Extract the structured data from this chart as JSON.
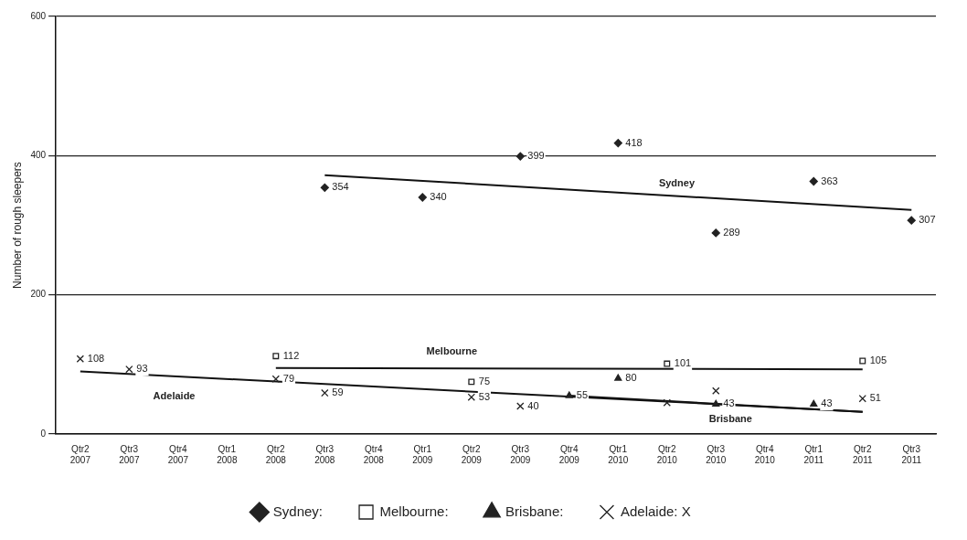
{
  "chart_data": {
    "type": "scatter",
    "ylabel": "Number of rough sleepers",
    "categories": [
      "Qtr2 2007",
      "Qtr3 2007",
      "Qtr4 2007",
      "Qtr1 2008",
      "Qtr2 2008",
      "Qtr3 2008",
      "Qtr4 2008",
      "Qtr1 2009",
      "Qtr2 2009",
      "Qtr3 2009",
      "Qtr4 2009",
      "Qtr1 2010",
      "Qtr2 2010",
      "Qtr3 2010",
      "Qtr4 2010",
      "Qtr1 2011",
      "Qtr2 2011",
      "Qtr3 2011"
    ],
    "series": [
      {
        "name": "Sydney:",
        "marker": "diamond",
        "color": "#222222",
        "x": [
          "Qtr3 2008",
          "Qtr1 2009",
          "Qtr3 2009",
          "Qtr1 2010",
          "Qtr3 2010",
          "Qtr1 2011",
          "Qtr3 2011"
        ],
        "values": [
          354,
          340,
          399,
          418,
          289,
          363,
          307
        ],
        "value_labels": [
          "354",
          "340",
          "399",
          "418",
          "289",
          "363",
          "307"
        ]
      },
      {
        "name": "Melbourne:",
        "marker": "square",
        "color": "#222222",
        "x": [
          "Qtr2 2008",
          "Qtr2 2009",
          "Qtr2 2010",
          "Qtr2 2011"
        ],
        "values": [
          112,
          75,
          101,
          105
        ],
        "value_labels": [
          "112",
          "75",
          "101",
          "105"
        ]
      },
      {
        "name": "Brisbane:",
        "marker": "triangle",
        "color": "#222222",
        "x": [
          "Qtr4 2009",
          "Qtr1 2010",
          "Qtr3 2010",
          "Qtr1 2011"
        ],
        "values": [
          55,
          80,
          43,
          43
        ],
        "value_labels": [
          "55",
          "80",
          "43",
          "43"
        ]
      },
      {
        "name": "Adelaide: X",
        "marker": "cross",
        "color": "#222222",
        "x": [
          "Qtr2 2007",
          "Qtr3 2007",
          "Qtr2 2008",
          "Qtr3 2008",
          "Qtr2 2009",
          "Qtr3 2009",
          "Qtr2 2010",
          "Qtr3 2010",
          "Qtr2 2011"
        ],
        "values": [
          108,
          93,
          79,
          59,
          53,
          40,
          45,
          62,
          51
        ],
        "value_labels": [
          "108",
          "93",
          "79",
          "59",
          "53",
          "40",
          null,
          null,
          "51"
        ]
      },
      {
        "name": "Sydney",
        "type": "line",
        "color": "#111111",
        "x": [
          "Qtr3 2008",
          "Qtr3 2011"
        ],
        "values": [
          372,
          322
        ]
      },
      {
        "name": "Melbourne",
        "type": "line",
        "color": "#111111",
        "x": [
          "Qtr2 2008",
          "Qtr2 2011"
        ],
        "values": [
          95,
          93
        ]
      },
      {
        "name": "Adelaide",
        "type": "line",
        "color": "#111111",
        "x": [
          "Qtr2 2007",
          "Qtr2 2011"
        ],
        "values": [
          90,
          32
        ]
      },
      {
        "name": "Brisbane",
        "type": "line",
        "color": "#111111",
        "x": [
          "Qtr4 2009",
          "Qtr2 2011"
        ],
        "values": [
          55,
          32
        ]
      }
    ],
    "ylim": [
      0,
      600
    ],
    "yticks": [
      0,
      200,
      400,
      600
    ],
    "grid": "y",
    "legend": "bottom"
  }
}
